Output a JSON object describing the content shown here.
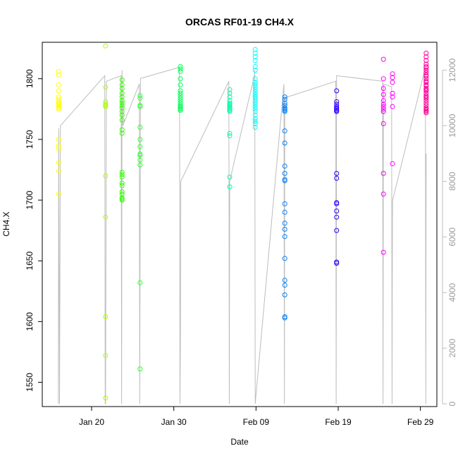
{
  "chart_data": {
    "type": "scatter",
    "title": "ORCAS RF01-19 CH4.X",
    "xlabel": "Date",
    "ylabel": "CH4.X",
    "x_axis": {
      "type": "date",
      "range": [
        "2016-01-14",
        "2016-03-02"
      ],
      "ticks": [
        {
          "date": "2016-01-20",
          "label": "Jan 20"
        },
        {
          "date": "2016-01-30",
          "label": "Jan 30"
        },
        {
          "date": "2016-02-09",
          "label": "Feb 09"
        },
        {
          "date": "2016-02-19",
          "label": "Feb 19"
        },
        {
          "date": "2016-02-29",
          "label": "Feb 29"
        }
      ]
    },
    "y_axis": {
      "range": [
        1530,
        1830
      ],
      "ticks": [
        1550,
        1600,
        1650,
        1700,
        1750,
        1800
      ]
    },
    "y2_axis": {
      "range": [
        -100,
        13000
      ],
      "ticks": [
        0,
        2000,
        4000,
        6000,
        8000,
        10000,
        12000
      ],
      "color": "#bdbdbd"
    },
    "grid": false,
    "legend": "none",
    "secondary_series": {
      "color": "#bdbdbd",
      "comment_free_points": [
        [
          "2016-01-15.95",
          0
        ],
        [
          "2016-01-16.0",
          9900
        ],
        [
          "2016-01-16.1",
          0
        ],
        [
          "2016-01-16.2",
          10000
        ],
        [
          "2016-01-21.6",
          11800
        ],
        [
          "2016-01-21.65",
          0
        ],
        [
          "2016-01-21.7",
          0
        ],
        [
          "2016-01-21.8",
          11600
        ],
        [
          "2016-01-23.6",
          11800
        ],
        [
          "2016-01-23.65",
          0
        ],
        [
          "2016-01-23.7",
          12000
        ],
        [
          "2016-01-23.8",
          10000
        ],
        [
          "2016-01-25.8",
          11500
        ],
        [
          "2016-01-25.85",
          0
        ],
        [
          "2016-01-25.95",
          11700
        ],
        [
          "2016-01-30.7",
          12100
        ],
        [
          "2016-01-30.75",
          0
        ],
        [
          "2016-01-30.8",
          2000
        ],
        [
          "2016-01-30.85",
          8000
        ],
        [
          "2016-02-05.7",
          11600
        ],
        [
          "2016-02-05.75",
          0
        ],
        [
          "2016-02-05.8",
          8000
        ],
        [
          "2016-02-08.8",
          11800
        ],
        [
          "2016-02-08.85",
          12000
        ],
        [
          "2016-02-08.9",
          0
        ],
        [
          "2016-02-12.4",
          11500
        ],
        [
          "2016-02-12.45",
          0
        ],
        [
          "2016-02-12.5",
          11000
        ],
        [
          "2016-02-18.7",
          11600
        ],
        [
          "2016-02-18.75",
          0
        ],
        [
          "2016-02-18.8",
          11800
        ],
        [
          "2016-02-24.4",
          11600
        ],
        [
          "2016-02-24.45",
          0
        ],
        [
          "2016-02-24.5",
          11500
        ],
        [
          "2016-02-25.5",
          11400
        ],
        [
          "2016-02-25.55",
          0
        ],
        [
          "2016-02-25.6",
          7300
        ],
        [
          "2016-02-29.6",
          12100
        ],
        [
          "2016-02-29.65",
          0
        ],
        [
          "2016-02-29.7",
          9000
        ]
      ]
    },
    "series": [
      {
        "color": "#ffff00",
        "x": [
          "2016-01-16",
          "2016-01-16",
          "2016-01-16",
          "2016-01-16",
          "2016-01-16",
          "2016-01-16",
          "2016-01-16",
          "2016-01-16",
          "2016-01-16",
          "2016-01-16",
          "2016-01-16",
          "2016-01-16",
          "2016-01-16",
          "2016-01-16",
          "2016-01-16",
          "2016-01-16",
          "2016-01-16",
          "2016-01-16",
          "2016-01-16"
        ],
        "y": [
          1806,
          1803,
          1795,
          1790,
          1785,
          1783,
          1781,
          1780,
          1779,
          1778,
          1777,
          1776,
          1775,
          1750,
          1745,
          1742,
          1731,
          1724,
          1705
        ]
      },
      {
        "color": "#b2ff00",
        "x": [
          "2016-01-21.7",
          "2016-01-21.7",
          "2016-01-21.7",
          "2016-01-21.7",
          "2016-01-21.7",
          "2016-01-21.7",
          "2016-01-21.7",
          "2016-01-21.7",
          "2016-01-21.7",
          "2016-01-21.7",
          "2016-01-21.7"
        ],
        "y": [
          1827,
          1793,
          1781,
          1779,
          1778,
          1777,
          1720,
          1686,
          1604,
          1572,
          1537
        ]
      },
      {
        "color": "#33ff00",
        "x": [
          "2016-01-23.7",
          "2016-01-23.7",
          "2016-01-23.7",
          "2016-01-23.7",
          "2016-01-23.7",
          "2016-01-23.7",
          "2016-01-23.7",
          "2016-01-23.7",
          "2016-01-23.7",
          "2016-01-23.7",
          "2016-01-23.7",
          "2016-01-23.7",
          "2016-01-23.7",
          "2016-01-23.7",
          "2016-01-23.7",
          "2016-01-23.7",
          "2016-01-23.7",
          "2016-01-23.7",
          "2016-01-23.7",
          "2016-01-23.7",
          "2016-01-23.7",
          "2016-01-23.7",
          "2016-01-23.7",
          "2016-01-23.7"
        ],
        "y": [
          1799,
          1795,
          1792,
          1788,
          1785,
          1782,
          1780,
          1778,
          1776,
          1773,
          1770,
          1766,
          1758,
          1755,
          1723,
          1721,
          1719,
          1714,
          1712,
          1707,
          1705,
          1702,
          1701,
          1700
        ]
      },
      {
        "color": "#33ff33",
        "x": [
          "2016-01-25.9",
          "2016-01-25.9",
          "2016-01-25.9",
          "2016-01-25.9",
          "2016-01-25.9",
          "2016-01-25.9",
          "2016-01-25.9",
          "2016-01-25.9",
          "2016-01-25.9",
          "2016-01-25.9",
          "2016-01-25.9",
          "2016-01-25.9",
          "2016-01-25.9"
        ],
        "y": [
          1786,
          1784,
          1778,
          1777,
          1760,
          1750,
          1744,
          1738,
          1737,
          1733,
          1729,
          1632,
          1561
        ]
      },
      {
        "color": "#00ff55",
        "x": [
          "2016-01-30.8",
          "2016-01-30.8",
          "2016-01-30.8",
          "2016-01-30.8",
          "2016-01-30.8",
          "2016-01-30.8",
          "2016-01-30.8",
          "2016-01-30.8",
          "2016-01-30.8",
          "2016-01-30.8",
          "2016-01-30.8",
          "2016-01-30.8",
          "2016-01-30.8",
          "2016-01-30.8",
          "2016-01-30.8",
          "2016-01-30.8"
        ],
        "y": [
          1810,
          1808,
          1806,
          1800,
          1795,
          1790,
          1788,
          1786,
          1784,
          1782,
          1780,
          1778,
          1777,
          1776,
          1775,
          1774
        ]
      },
      {
        "color": "#00ffaa",
        "x": [
          "2016-02-05.8",
          "2016-02-05.8",
          "2016-02-05.8",
          "2016-02-05.8",
          "2016-02-05.8",
          "2016-02-05.8",
          "2016-02-05.8",
          "2016-02-05.8",
          "2016-02-05.8",
          "2016-02-05.8",
          "2016-02-05.8",
          "2016-02-05.8",
          "2016-02-05.8",
          "2016-02-05.8",
          "2016-02-05.8",
          "2016-02-05.8"
        ],
        "y": [
          1791,
          1788,
          1785,
          1782,
          1780,
          1779,
          1778,
          1777,
          1776,
          1775,
          1774,
          1773,
          1755,
          1753,
          1719,
          1711
        ]
      },
      {
        "color": "#00ffff",
        "x": [
          "2016-02-08.9",
          "2016-02-08.9",
          "2016-02-08.9",
          "2016-02-08.9",
          "2016-02-08.9",
          "2016-02-08.9",
          "2016-02-08.9",
          "2016-02-08.9",
          "2016-02-08.9",
          "2016-02-08.9",
          "2016-02-08.9",
          "2016-02-08.9",
          "2016-02-08.9",
          "2016-02-08.9",
          "2016-02-08.9",
          "2016-02-08.9",
          "2016-02-08.9",
          "2016-02-08.9",
          "2016-02-08.9",
          "2016-02-08.9",
          "2016-02-08.9",
          "2016-02-08.9",
          "2016-02-08.9",
          "2016-02-08.9",
          "2016-02-08.9",
          "2016-02-08.9"
        ],
        "y": [
          1824,
          1821,
          1818,
          1815,
          1810,
          1807,
          1800,
          1797,
          1795,
          1793,
          1791,
          1789,
          1787,
          1785,
          1783,
          1781,
          1779,
          1777,
          1775,
          1773,
          1770,
          1767,
          1765,
          1763,
          1760,
          1785
        ]
      },
      {
        "color": "#0080ff",
        "x": [
          "2016-02-12.5",
          "2016-02-12.5",
          "2016-02-12.5",
          "2016-02-12.5",
          "2016-02-12.5",
          "2016-02-12.5",
          "2016-02-12.5",
          "2016-02-12.5",
          "2016-02-12.5",
          "2016-02-12.5",
          "2016-02-12.5",
          "2016-02-12.5",
          "2016-02-12.5",
          "2016-02-12.5",
          "2016-02-12.5",
          "2016-02-12.5",
          "2016-02-12.5",
          "2016-02-12.5",
          "2016-02-12.5",
          "2016-02-12.5",
          "2016-02-12.5",
          "2016-02-12.5",
          "2016-02-12.5",
          "2016-02-12.5",
          "2016-02-12.5"
        ],
        "y": [
          1785,
          1783,
          1780,
          1778,
          1776,
          1775,
          1774,
          1773,
          1757,
          1747,
          1728,
          1722,
          1717,
          1716,
          1697,
          1690,
          1681,
          1676,
          1670,
          1652,
          1634,
          1630,
          1622,
          1604,
          1603
        ]
      },
      {
        "color": "#3300ff",
        "x": [
          "2016-02-18.8",
          "2016-02-18.8",
          "2016-02-18.8",
          "2016-02-18.8",
          "2016-02-18.8",
          "2016-02-18.8",
          "2016-02-18.8",
          "2016-02-18.8",
          "2016-02-18.8",
          "2016-02-18.8",
          "2016-02-18.8",
          "2016-02-18.8",
          "2016-02-18.8",
          "2016-02-18.8",
          "2016-02-18.8",
          "2016-02-18.8",
          "2016-02-18.8",
          "2016-02-18.8"
        ],
        "y": [
          1790,
          1781,
          1779,
          1777,
          1776,
          1775,
          1774,
          1773,
          1722,
          1718,
          1698,
          1697,
          1691,
          1686,
          1675,
          1649,
          1648,
          1773
        ]
      },
      {
        "color": "#ff00ff",
        "x": [
          "2016-02-24.5",
          "2016-02-24.5",
          "2016-02-24.5",
          "2016-02-24.5",
          "2016-02-24.5",
          "2016-02-24.5",
          "2016-02-24.5",
          "2016-02-24.5",
          "2016-02-24.5",
          "2016-02-24.5",
          "2016-02-24.5",
          "2016-02-24.5",
          "2016-02-24.5",
          "2016-02-24.5",
          "2016-02-25.6",
          "2016-02-25.6",
          "2016-02-25.6",
          "2016-02-25.6",
          "2016-02-25.6",
          "2016-02-25.6",
          "2016-02-25.6"
        ],
        "y": [
          1816,
          1800,
          1792,
          1787,
          1782,
          1779,
          1777,
          1775,
          1773,
          1763,
          1722,
          1705,
          1657,
          1773,
          1804,
          1801,
          1797,
          1788,
          1785,
          1777,
          1730
        ]
      },
      {
        "color": "#ff0099",
        "x": [
          "2016-02-29.7",
          "2016-02-29.7",
          "2016-02-29.7",
          "2016-02-29.7",
          "2016-02-29.7",
          "2016-02-29.7",
          "2016-02-29.7",
          "2016-02-29.7",
          "2016-02-29.7",
          "2016-02-29.7",
          "2016-02-29.7",
          "2016-02-29.7",
          "2016-02-29.7",
          "2016-02-29.7",
          "2016-02-29.7",
          "2016-02-29.7",
          "2016-02-29.7",
          "2016-02-29.7",
          "2016-02-29.7",
          "2016-02-29.7",
          "2016-02-29.7",
          "2016-02-29.7",
          "2016-02-29.7",
          "2016-02-29.7",
          "2016-02-29.7",
          "2016-02-29.7",
          "2016-02-29.7",
          "2016-02-29.7",
          "2016-02-29.7",
          "2016-02-29.7"
        ],
        "y": [
          1821,
          1818,
          1815,
          1812,
          1810,
          1807,
          1805,
          1802,
          1800,
          1797,
          1795,
          1792,
          1790,
          1788,
          1786,
          1784,
          1782,
          1780,
          1778,
          1776,
          1775,
          1774,
          1773,
          1772,
          1785,
          1791,
          1794,
          1798,
          1803,
          1809
        ]
      }
    ]
  }
}
